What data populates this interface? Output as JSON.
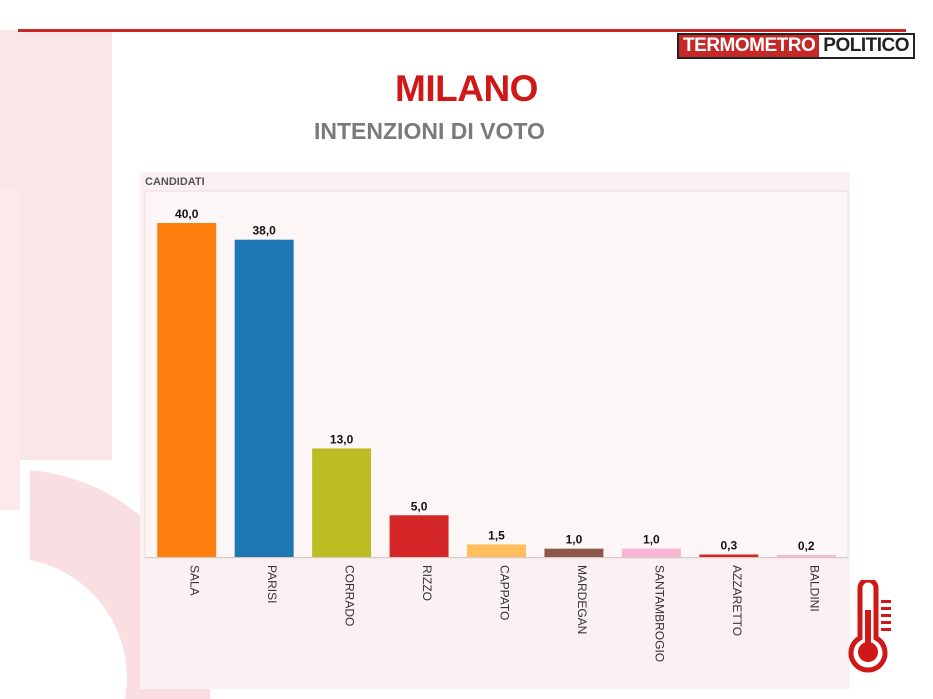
{
  "brand": {
    "part1": "TERMOMETRO",
    "part2": "POLITICO"
  },
  "header": {
    "title": "MILANO",
    "subtitle": "INTENZIONI DI VOTO"
  },
  "colors": {
    "accent": "#d01818",
    "panel": "#fbf1f2"
  },
  "icons": {
    "logo": "thermometer-icon"
  },
  "chart_data": {
    "type": "bar",
    "title": "MILANO",
    "subtitle": "INTENZIONI DI VOTO",
    "xlabel": "",
    "ylabel": "",
    "axis_caption": "CANDIDATI",
    "categories": [
      "SALA",
      "PARISI",
      "CORRADO",
      "RIZZO",
      "CAPPATO",
      "MARDEGAN",
      "SANTAMBROGIO",
      "AZZARETTO",
      "BALDINI"
    ],
    "values": [
      40.0,
      38.0,
      13.0,
      5.0,
      1.5,
      1.0,
      1.0,
      0.3,
      0.2
    ],
    "value_labels": [
      "40,0",
      "38,0",
      "13,0",
      "5,0",
      "1,5",
      "1,0",
      "1,0",
      "0,3",
      "0,2"
    ],
    "colors": [
      "#ff7f0e",
      "#1f77b4",
      "#bcbd22",
      "#d62728",
      "#ffbf5f",
      "#8c564b",
      "#f7b6d2",
      "#d62728",
      "#f7b6d2"
    ],
    "ylim": [
      0,
      40
    ],
    "grid": false,
    "legend": "none"
  }
}
